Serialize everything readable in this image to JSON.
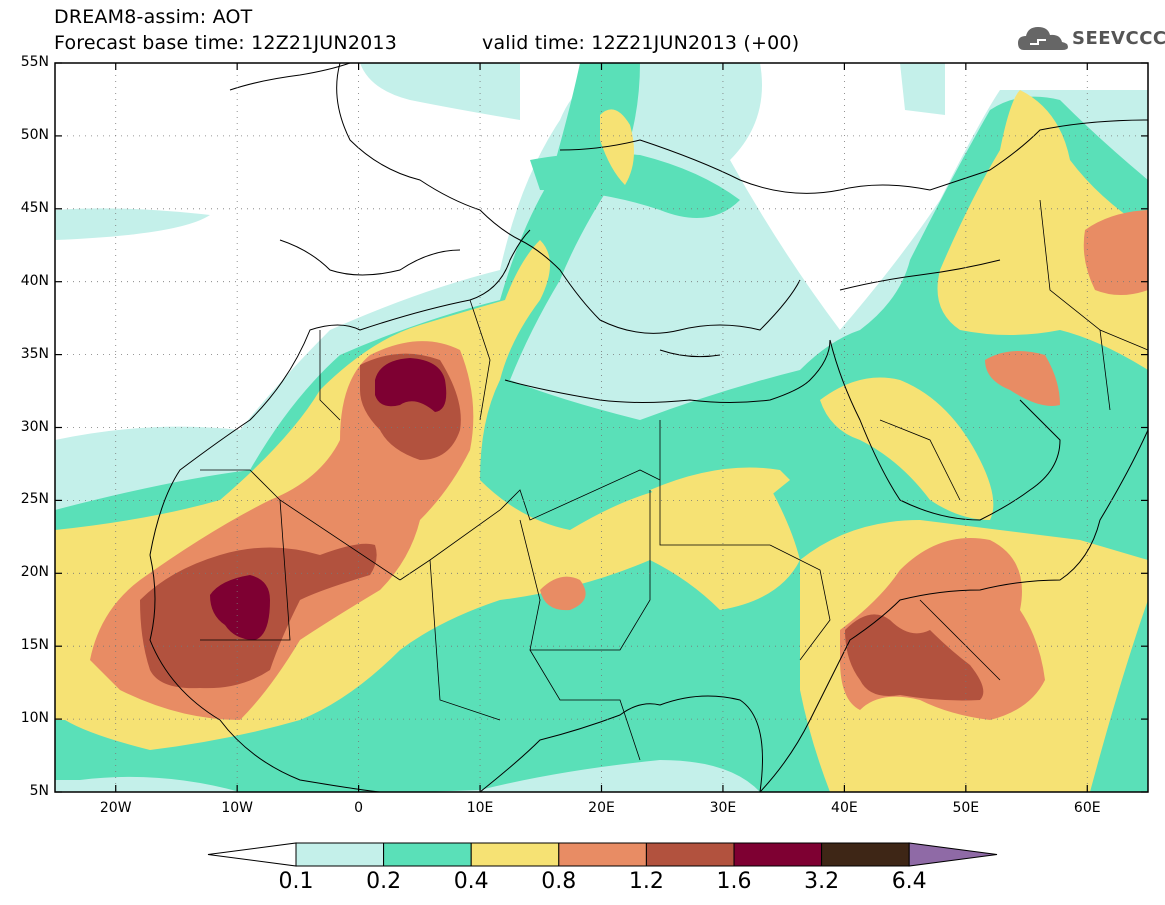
{
  "header": {
    "title": "DREAM8-assim: AOT",
    "forecast_base": "Forecast base time: 12Z21JUN2013",
    "valid_time": "valid time: 12Z21JUN2013 (+00)",
    "logo_text": "SEEVCCC"
  },
  "map": {
    "lon_range": [
      -25,
      65
    ],
    "lat_range": [
      5,
      55
    ],
    "lat_labels": [
      {
        "lat": 55,
        "text": "55N"
      },
      {
        "lat": 50,
        "text": "50N"
      },
      {
        "lat": 45,
        "text": "45N"
      },
      {
        "lat": 40,
        "text": "40N"
      },
      {
        "lat": 35,
        "text": "35N"
      },
      {
        "lat": 30,
        "text": "30N"
      },
      {
        "lat": 25,
        "text": "25N"
      },
      {
        "lat": 20,
        "text": "20N"
      },
      {
        "lat": 15,
        "text": "15N"
      },
      {
        "lat": 10,
        "text": "10N"
      },
      {
        "lat": 5,
        "text": "5N"
      }
    ],
    "lon_labels": [
      {
        "lon": -20,
        "text": "20W"
      },
      {
        "lon": -10,
        "text": "10W"
      },
      {
        "lon": 0,
        "text": "0"
      },
      {
        "lon": 10,
        "text": "10E"
      },
      {
        "lon": 20,
        "text": "20E"
      },
      {
        "lon": 30,
        "text": "30E"
      },
      {
        "lon": 40,
        "text": "40E"
      },
      {
        "lon": 50,
        "text": "50E"
      },
      {
        "lon": 60,
        "text": "60E"
      }
    ]
  },
  "colors": {
    "c1": "#c4f0ea",
    "c2": "#5ae0b8",
    "c3": "#f6e274",
    "c4": "#e88c64",
    "c5": "#b2523e",
    "c6": "#7e0032",
    "c7": "#3e2616",
    "c8": "#8f6aa6"
  },
  "colorbar": {
    "labels": [
      "0.1",
      "0.2",
      "0.4",
      "0.8",
      "1.2",
      "1.6",
      "3.2",
      "6.4"
    ]
  }
}
